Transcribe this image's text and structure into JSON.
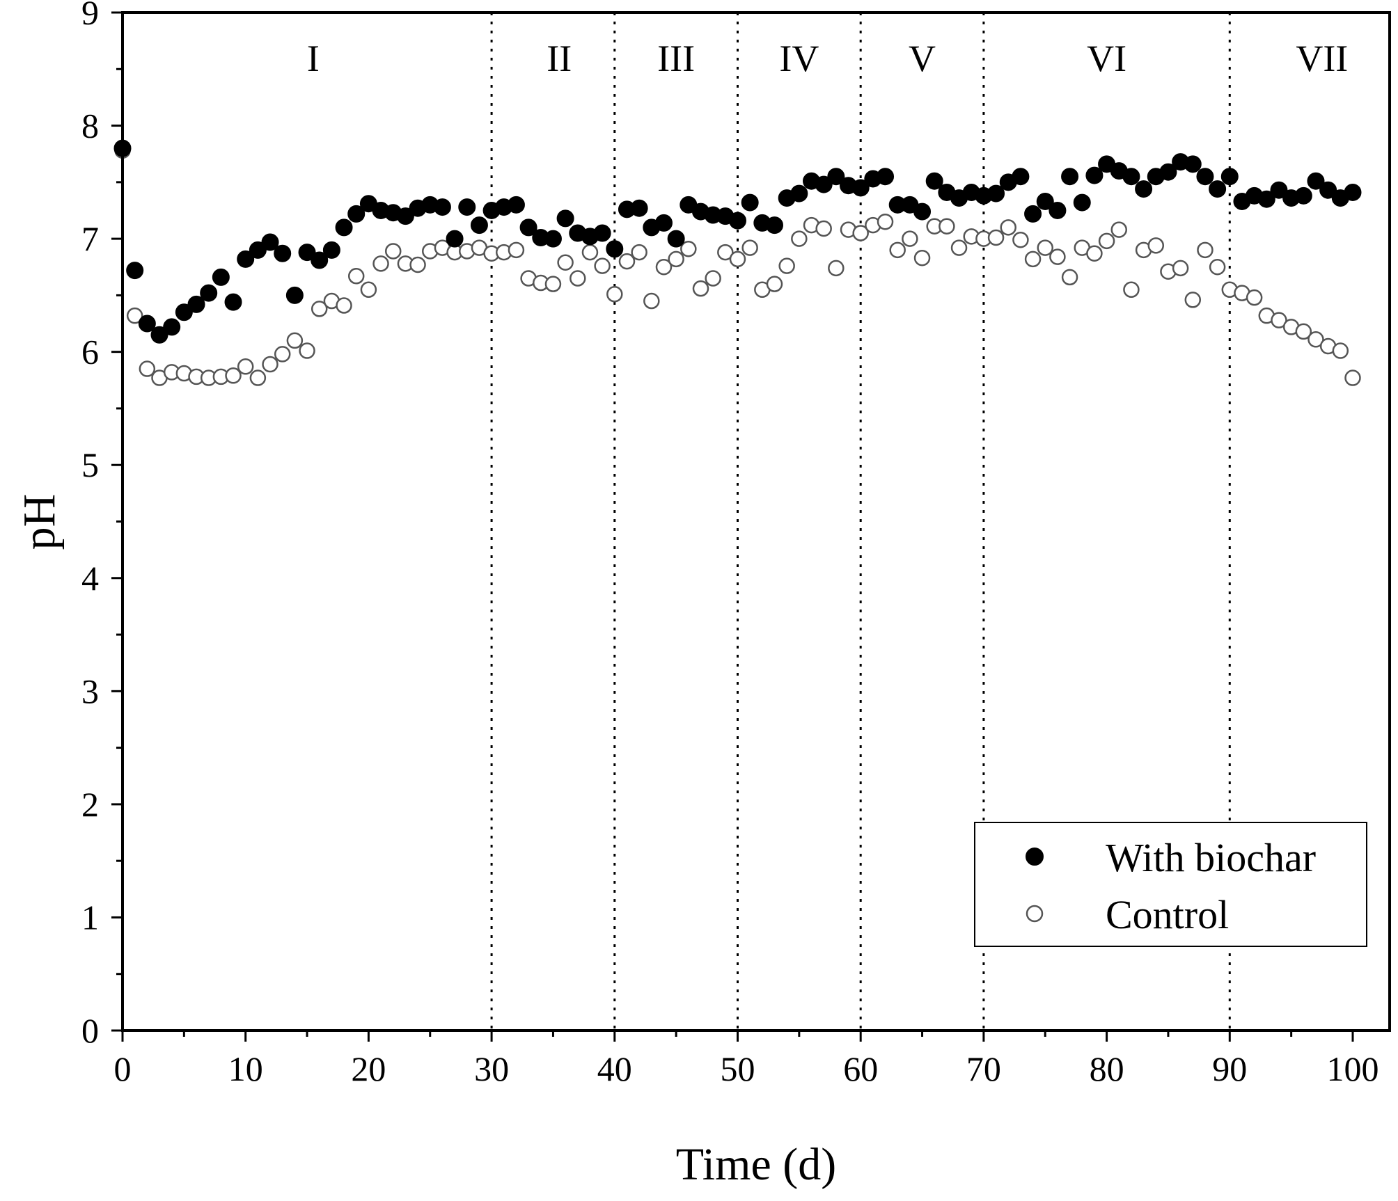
{
  "chart_data": {
    "type": "scatter",
    "xlabel": "Time (d)",
    "ylabel": "pH",
    "xlim": [
      0,
      103
    ],
    "ylim": [
      0,
      9
    ],
    "xticks": [
      "0",
      "10",
      "20",
      "30",
      "40",
      "50",
      "60",
      "70",
      "80",
      "90",
      "100"
    ],
    "yticks": [
      "0",
      "1",
      "2",
      "3",
      "4",
      "5",
      "6",
      "7",
      "8",
      "9"
    ],
    "legend_position": "bottom-right",
    "phase_boundaries": [
      30,
      40,
      50,
      60,
      70,
      90
    ],
    "phases": [
      {
        "label": "I",
        "center": 15.5
      },
      {
        "label": "II",
        "center": 35.5
      },
      {
        "label": "III",
        "center": 45
      },
      {
        "label": "IV",
        "center": 55
      },
      {
        "label": "V",
        "center": 65
      },
      {
        "label": "VI",
        "center": 80
      },
      {
        "label": "VII",
        "center": 97.5
      }
    ],
    "series": [
      {
        "name": "With biochar",
        "marker": "filled-circle",
        "color": "#000000",
        "x": [
          0,
          1,
          2,
          3,
          4,
          5,
          6,
          7,
          8,
          9,
          10,
          11,
          12,
          13,
          14,
          15,
          16,
          17,
          18,
          19,
          20,
          21,
          22,
          23,
          24,
          25,
          26,
          27,
          28,
          29,
          30,
          31,
          32,
          33,
          34,
          35,
          36,
          37,
          38,
          39,
          40,
          41,
          42,
          43,
          44,
          45,
          46,
          47,
          48,
          49,
          50,
          51,
          52,
          53,
          54,
          55,
          56,
          57,
          58,
          59,
          60,
          61,
          62,
          63,
          64,
          65,
          66,
          67,
          68,
          69,
          70,
          71,
          72,
          73,
          74,
          75,
          76,
          77,
          78,
          79,
          80,
          81,
          82,
          83,
          84,
          85,
          86,
          87,
          88,
          89,
          90,
          91,
          92,
          93,
          94,
          95,
          96,
          97,
          98,
          99,
          100
        ],
        "values": [
          7.8,
          6.72,
          6.25,
          6.15,
          6.22,
          6.35,
          6.42,
          6.52,
          6.66,
          6.44,
          6.82,
          6.9,
          6.97,
          6.87,
          6.5,
          6.88,
          6.81,
          6.9,
          7.1,
          7.22,
          7.31,
          7.25,
          7.23,
          7.2,
          7.27,
          7.3,
          7.28,
          7.0,
          7.28,
          7.12,
          7.25,
          7.28,
          7.3,
          7.1,
          7.01,
          7.0,
          7.18,
          7.05,
          7.02,
          7.05,
          6.91,
          7.26,
          7.27,
          7.1,
          7.14,
          7.0,
          7.3,
          7.24,
          7.21,
          7.2,
          7.16,
          7.32,
          7.14,
          7.12,
          7.36,
          7.4,
          7.51,
          7.48,
          7.55,
          7.47,
          7.45,
          7.53,
          7.55,
          7.3,
          7.3,
          7.24,
          7.51,
          7.41,
          7.36,
          7.41,
          7.38,
          7.4,
          7.5,
          7.55,
          7.22,
          7.33,
          7.25,
          7.55,
          7.32,
          7.56,
          7.66,
          7.6,
          7.55,
          7.44,
          7.55,
          7.59,
          7.68,
          7.66,
          7.55,
          7.44,
          7.55,
          7.33,
          7.38,
          7.35,
          7.43,
          7.36,
          7.38,
          7.51,
          7.43,
          7.36,
          7.41
        ]
      },
      {
        "name": "Control",
        "marker": "open-circle",
        "color": "#555555",
        "x": [
          0,
          1,
          2,
          3,
          4,
          5,
          6,
          7,
          8,
          9,
          10,
          11,
          12,
          13,
          14,
          15,
          16,
          17,
          18,
          19,
          20,
          21,
          22,
          23,
          24,
          25,
          26,
          27,
          28,
          29,
          30,
          31,
          32,
          33,
          34,
          35,
          36,
          37,
          38,
          39,
          40,
          41,
          42,
          43,
          44,
          45,
          46,
          47,
          48,
          49,
          50,
          51,
          52,
          53,
          54,
          55,
          56,
          57,
          58,
          59,
          60,
          61,
          62,
          63,
          64,
          65,
          66,
          67,
          68,
          69,
          70,
          71,
          72,
          73,
          74,
          75,
          76,
          77,
          78,
          79,
          80,
          81,
          82,
          83,
          84,
          85,
          86,
          87,
          88,
          89,
          90,
          91,
          92,
          93,
          94,
          95,
          96,
          97,
          98,
          99,
          100
        ],
        "values": [
          7.78,
          6.32,
          5.85,
          5.77,
          5.82,
          5.81,
          5.78,
          5.77,
          5.78,
          5.79,
          5.87,
          5.77,
          5.89,
          5.98,
          6.1,
          6.01,
          6.38,
          6.45,
          6.41,
          6.67,
          6.55,
          6.78,
          6.89,
          6.78,
          6.77,
          6.89,
          6.92,
          6.88,
          6.89,
          6.92,
          6.87,
          6.88,
          6.9,
          6.65,
          6.61,
          6.6,
          6.79,
          6.65,
          6.88,
          6.76,
          6.51,
          6.8,
          6.88,
          6.45,
          6.75,
          6.82,
          6.91,
          6.56,
          6.65,
          6.88,
          6.82,
          6.92,
          6.55,
          6.6,
          6.76,
          7.0,
          7.12,
          7.09,
          6.74,
          7.08,
          7.05,
          7.12,
          7.15,
          6.9,
          7.0,
          6.83,
          7.11,
          7.11,
          6.92,
          7.02,
          7.0,
          7.01,
          7.1,
          6.99,
          6.82,
          6.92,
          6.84,
          6.66,
          6.92,
          6.87,
          6.98,
          7.08,
          6.55,
          6.9,
          6.94,
          6.71,
          6.74,
          6.46,
          6.9,
          6.75,
          6.55,
          6.52,
          6.48,
          6.32,
          6.28,
          6.22,
          6.18,
          6.11,
          6.05,
          6.01,
          5.77
        ]
      }
    ]
  }
}
